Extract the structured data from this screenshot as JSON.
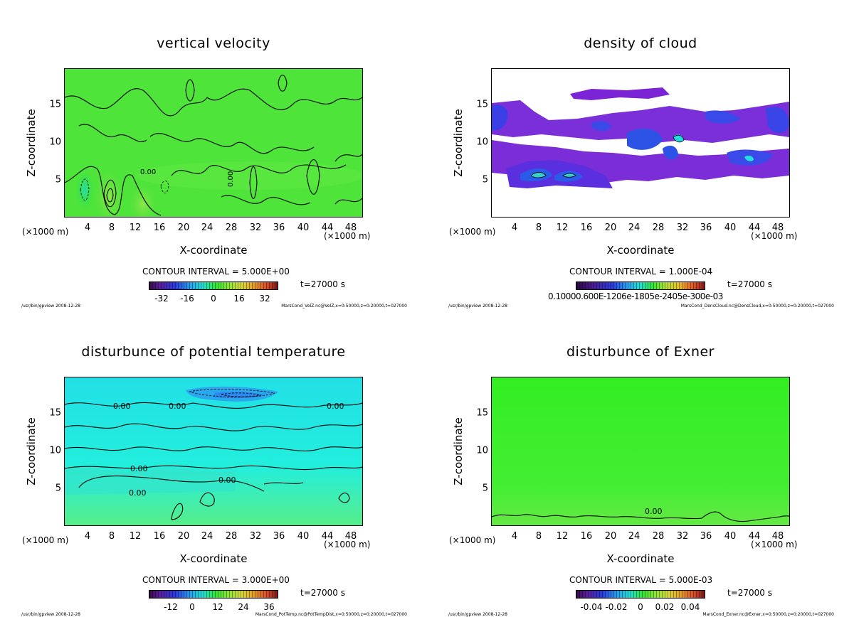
{
  "palette": {
    "green": "#33e633",
    "green_light": "#66ee44",
    "cyan": "#22eedd",
    "blue": "#2244ee",
    "purple": "#7a2adb",
    "white": "#ffffff"
  },
  "common": {
    "y_label": "Z-coordinate",
    "x_label": "X-coordinate",
    "x_unit_left": "(×1000 m)",
    "x_unit_right": "(×1000 m)",
    "x_ticks": [
      "4",
      "8",
      "12",
      "16",
      "20",
      "24",
      "28",
      "32",
      "36",
      "40",
      "44",
      "48"
    ],
    "y_ticks": [
      "5",
      "10",
      "15"
    ],
    "time": "t=27000 s",
    "footer_left": "/usr/bin/gpview  2008-12-28"
  },
  "chart_data": [
    {
      "type": "heatmap",
      "title": "vertical velocity",
      "xlabel": "X-coordinate",
      "ylabel": "Z-coordinate",
      "xlim": [
        0,
        50
      ],
      "ylim": [
        0,
        20
      ],
      "contour_interval": "CONTOUR INTERVAL = 5.000E+00",
      "contour_labels": [
        "0.00",
        "0.00"
      ],
      "colorbar_ticks": [
        "-32",
        "-16",
        "0",
        "16",
        "32"
      ],
      "colorbar_range": [
        -40,
        40
      ],
      "footer_right": "MarsCond_VelZ.nc@VelZ,x=0:50000,z=0:20000,t=027000"
    },
    {
      "type": "heatmap",
      "title": "density of cloud",
      "xlabel": "X-coordinate",
      "ylabel": "Z-coordinate",
      "xlim": [
        0,
        50
      ],
      "ylim": [
        0,
        20
      ],
      "contour_interval": "CONTOUR INTERVAL = 1.000E-04",
      "colorbar_text": "0.10000.600E-1206e-1805e-2405e-300e-03",
      "footer_right": "MarsCond_DensCloud.nc@DensCloud,x=0:50000,z=0:20000,t=027000"
    },
    {
      "type": "heatmap",
      "title": "disturbunce of potential temperature",
      "xlabel": "X-coordinate",
      "ylabel": "Z-coordinate",
      "xlim": [
        0,
        50
      ],
      "ylim": [
        0,
        20
      ],
      "contour_interval": "CONTOUR INTERVAL = 3.000E+00",
      "contour_labels": [
        "0.00",
        "0.00",
        "0.00",
        "0.00",
        "0.00",
        "0.00"
      ],
      "colorbar_ticks": [
        "-12",
        "0",
        "12",
        "24",
        "36"
      ],
      "colorbar_range": [
        -18,
        42
      ],
      "footer_right": "MarsCond_PotTemp.nc@PotTempDist,x=0:50000,z=0:20000,t=027000"
    },
    {
      "type": "heatmap",
      "title": "disturbunce of Exner",
      "xlabel": "X-coordinate",
      "ylabel": "Z-coordinate",
      "xlim": [
        0,
        50
      ],
      "ylim": [
        0,
        20
      ],
      "contour_interval": "CONTOUR INTERVAL = 5.000E-03",
      "contour_labels": [
        "0.00"
      ],
      "colorbar_ticks": [
        "-0.04",
        "-0.02",
        "0",
        "0.02",
        "0.04"
      ],
      "colorbar_range": [
        -0.05,
        0.05
      ],
      "footer_right": "MarsCond_Exner.nc@Exner,x=0:50000,z=0:20000,t=027000"
    }
  ]
}
